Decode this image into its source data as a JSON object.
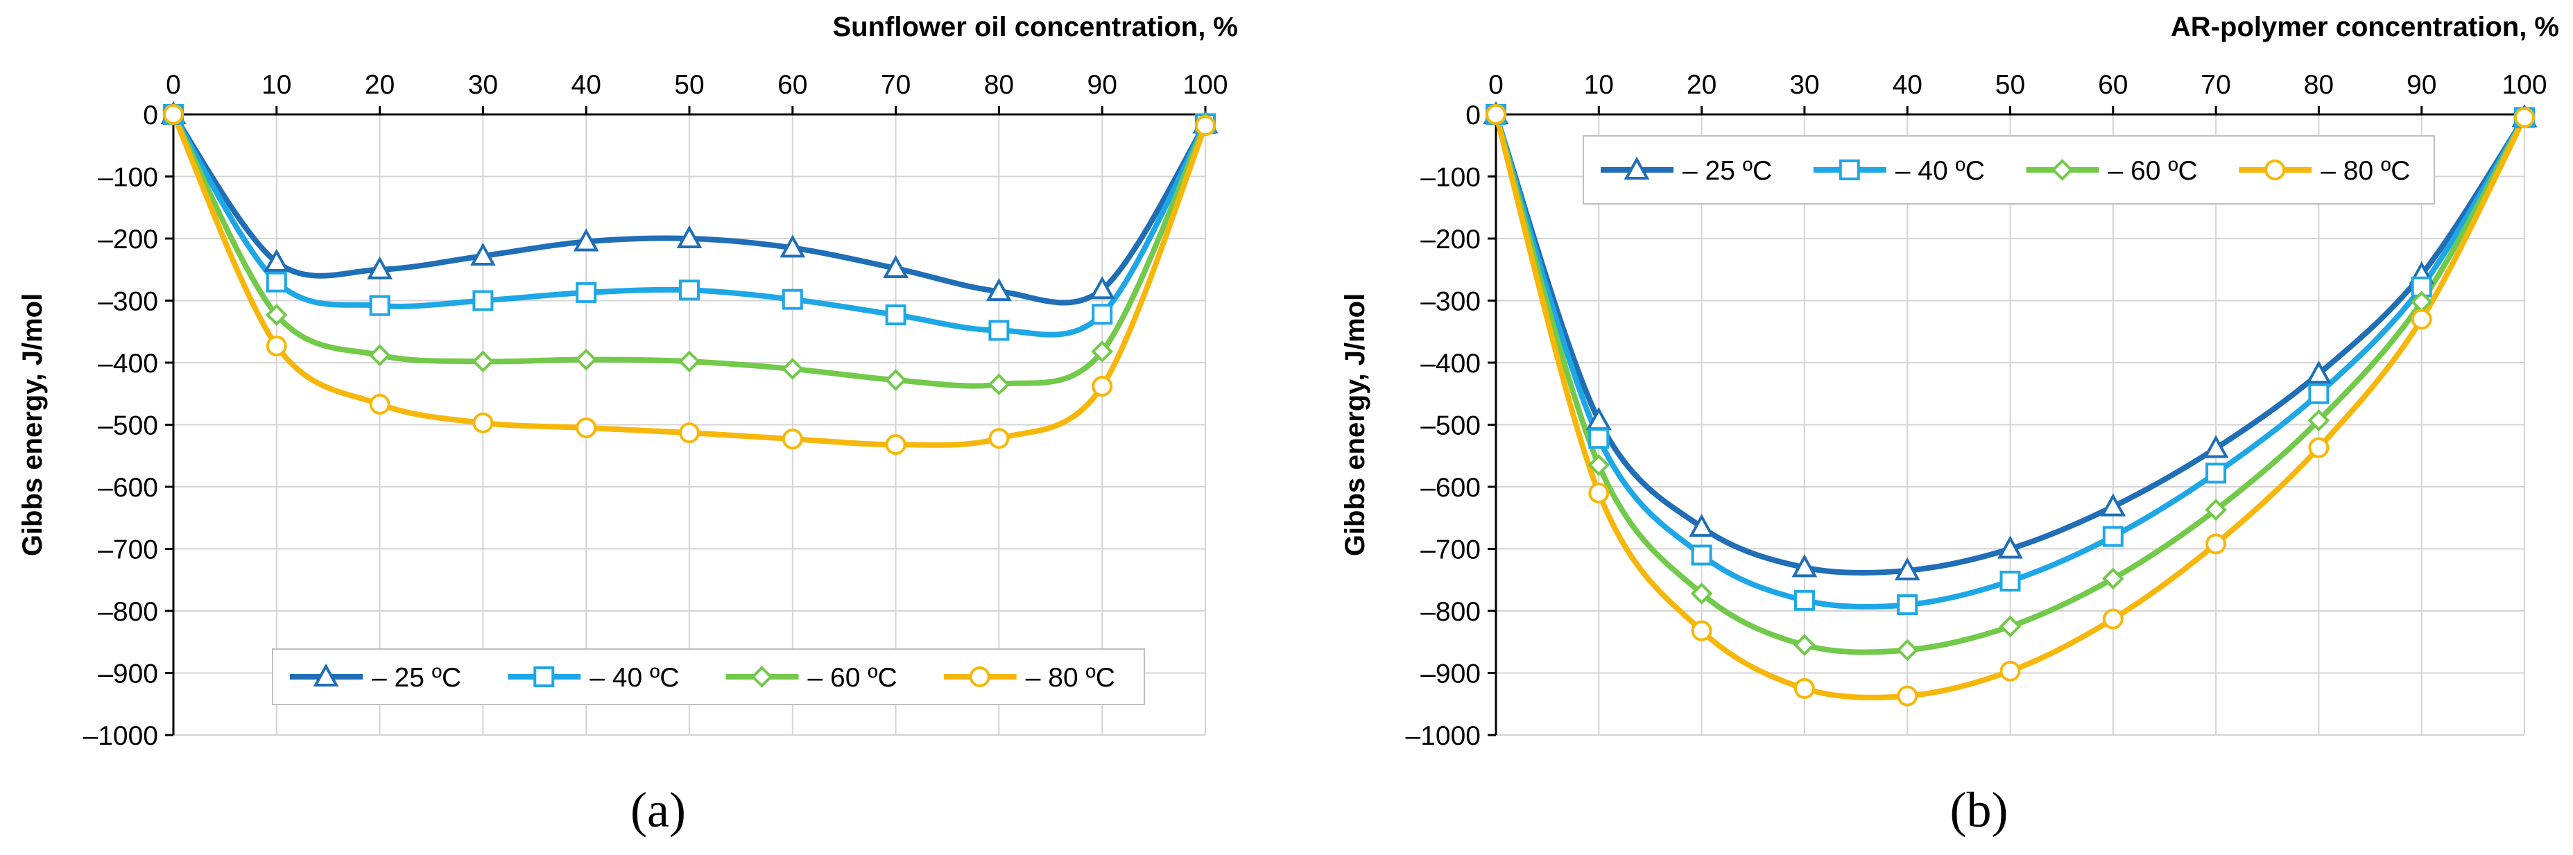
{
  "figure": {
    "panels": [
      "(a)",
      "(b)"
    ]
  },
  "chart_data": [
    {
      "type": "line",
      "panel_label": "(a)",
      "title": "",
      "xlabel": "Sunflower oil concentration, %",
      "ylabel": "Gibbs energy, J/mol",
      "xlim": [
        0,
        100
      ],
      "ylim": [
        -1000,
        0
      ],
      "x_axis_position": "top",
      "grid": true,
      "legend_position": "bottom-center",
      "x": [
        0,
        10,
        20,
        30,
        40,
        50,
        60,
        70,
        80,
        90,
        100
      ],
      "x_tick_labels": [
        "0",
        "10",
        "20",
        "30",
        "40",
        "50",
        "60",
        "70",
        "80",
        "90",
        "100"
      ],
      "y_tick_labels": [
        "0",
        "–100",
        "–200",
        "–300",
        "–400",
        "–500",
        "–600",
        "–700",
        "–800",
        "–900",
        "–1000"
      ],
      "series": [
        {
          "name": "– 25 ºC",
          "color": "#1f6eb6",
          "marker": "triangle",
          "values": [
            0,
            -238,
            -250,
            -228,
            -205,
            -200,
            -215,
            -248,
            -285,
            -282,
            -15
          ]
        },
        {
          "name": "– 40 ºC",
          "color": "#1ea7e6",
          "marker": "square",
          "values": [
            0,
            -270,
            -308,
            -300,
            -287,
            -283,
            -298,
            -323,
            -348,
            -322,
            -15
          ]
        },
        {
          "name": "– 60 ºC",
          "color": "#72c94a",
          "marker": "diamond",
          "values": [
            0,
            -323,
            -388,
            -398,
            -395,
            -398,
            -410,
            -428,
            -435,
            -382,
            -15
          ]
        },
        {
          "name": "– 80 ºC",
          "color": "#f7b70a",
          "marker": "circle",
          "values": [
            0,
            -373,
            -467,
            -497,
            -505,
            -513,
            -523,
            -532,
            -522,
            -438,
            -18
          ]
        }
      ]
    },
    {
      "type": "line",
      "panel_label": "(b)",
      "title": "",
      "xlabel": "AR-polymer concentration, %",
      "ylabel": "Gibbs energy, J/mol",
      "xlim": [
        0,
        100
      ],
      "ylim": [
        -1000,
        0
      ],
      "x_axis_position": "top",
      "grid": true,
      "legend_position": "top-center",
      "x": [
        0,
        10,
        20,
        30,
        40,
        50,
        60,
        70,
        80,
        90,
        100
      ],
      "x_tick_labels": [
        "0",
        "10",
        "20",
        "30",
        "40",
        "50",
        "60",
        "70",
        "80",
        "90",
        "100"
      ],
      "y_tick_labels": [
        "0",
        "–100",
        "–200",
        "–300",
        "–400",
        "–500",
        "–600",
        "–700",
        "–800",
        "–900",
        "–1000"
      ],
      "series": [
        {
          "name": "– 25 ºC",
          "color": "#1f6eb6",
          "marker": "triangle",
          "values": [
            0,
            -493,
            -665,
            -730,
            -735,
            -700,
            -632,
            -538,
            -418,
            -258,
            -5
          ]
        },
        {
          "name": "– 40 ºC",
          "color": "#1ea7e6",
          "marker": "square",
          "values": [
            0,
            -522,
            -710,
            -783,
            -790,
            -752,
            -680,
            -578,
            -450,
            -278,
            -5
          ]
        },
        {
          "name": "– 60 ºC",
          "color": "#72c94a",
          "marker": "diamond",
          "values": [
            0,
            -565,
            -772,
            -855,
            -863,
            -825,
            -748,
            -637,
            -493,
            -302,
            -5
          ]
        },
        {
          "name": "– 80 ºC",
          "color": "#f7b70a",
          "marker": "circle",
          "values": [
            0,
            -610,
            -832,
            -925,
            -937,
            -897,
            -813,
            -692,
            -537,
            -330,
            -5
          ]
        }
      ]
    }
  ]
}
